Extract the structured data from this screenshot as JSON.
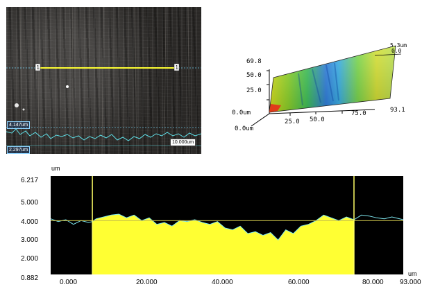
{
  "micro_image": {
    "marker_left": "1",
    "marker_right": "1",
    "upper_value": "4.147um",
    "lower_value": "2.297um",
    "scale_bar": "10.000um"
  },
  "surface_3d": {
    "z_top": "69.8",
    "z_50": "50.0",
    "z_25": "25.0",
    "z_0": "0.0um",
    "x_0": "0.0um",
    "x_25": "25.0",
    "x_50": "50.0",
    "x_75": "75.0",
    "x_max": "93.1",
    "y_max": "5.3um",
    "y_0": "0.0"
  },
  "chart_data": {
    "type": "area",
    "unit_y": "um",
    "unit_x": "um",
    "y_tick_labels": [
      "6.217",
      "5.000",
      "4.000",
      "3.000",
      "2.000",
      "0.882"
    ],
    "x_tick_labels": [
      "0.000",
      "20.000",
      "40.000",
      "60.000",
      "80.000",
      "93.000"
    ],
    "ylim": [
      0.882,
      6.217
    ],
    "xlim": [
      0,
      93
    ],
    "reference_level": 3.8,
    "cursor_left_x": 11,
    "cursor_right_x": 80,
    "profile": {
      "x": [
        0,
        2,
        4,
        6,
        8,
        10,
        11,
        12,
        14,
        16,
        18,
        20,
        22,
        24,
        26,
        28,
        30,
        32,
        34,
        36,
        38,
        40,
        42,
        44,
        46,
        48,
        50,
        52,
        54,
        56,
        58,
        60,
        62,
        64,
        66,
        68,
        70,
        72,
        74,
        76,
        78,
        80,
        82,
        84,
        86,
        88,
        90,
        93
      ],
      "y": [
        3.9,
        3.75,
        3.85,
        3.6,
        3.8,
        3.7,
        3.75,
        3.9,
        4.0,
        4.1,
        4.15,
        3.95,
        4.1,
        3.8,
        3.95,
        3.6,
        3.7,
        3.5,
        3.8,
        3.75,
        3.85,
        3.7,
        3.6,
        3.75,
        3.4,
        3.3,
        3.5,
        3.1,
        3.2,
        3.0,
        3.15,
        2.75,
        3.3,
        3.1,
        3.5,
        3.6,
        3.8,
        4.1,
        3.95,
        3.8,
        4.0,
        3.85,
        4.1,
        4.05,
        3.95,
        3.9,
        4.0,
        3.85
      ]
    }
  }
}
